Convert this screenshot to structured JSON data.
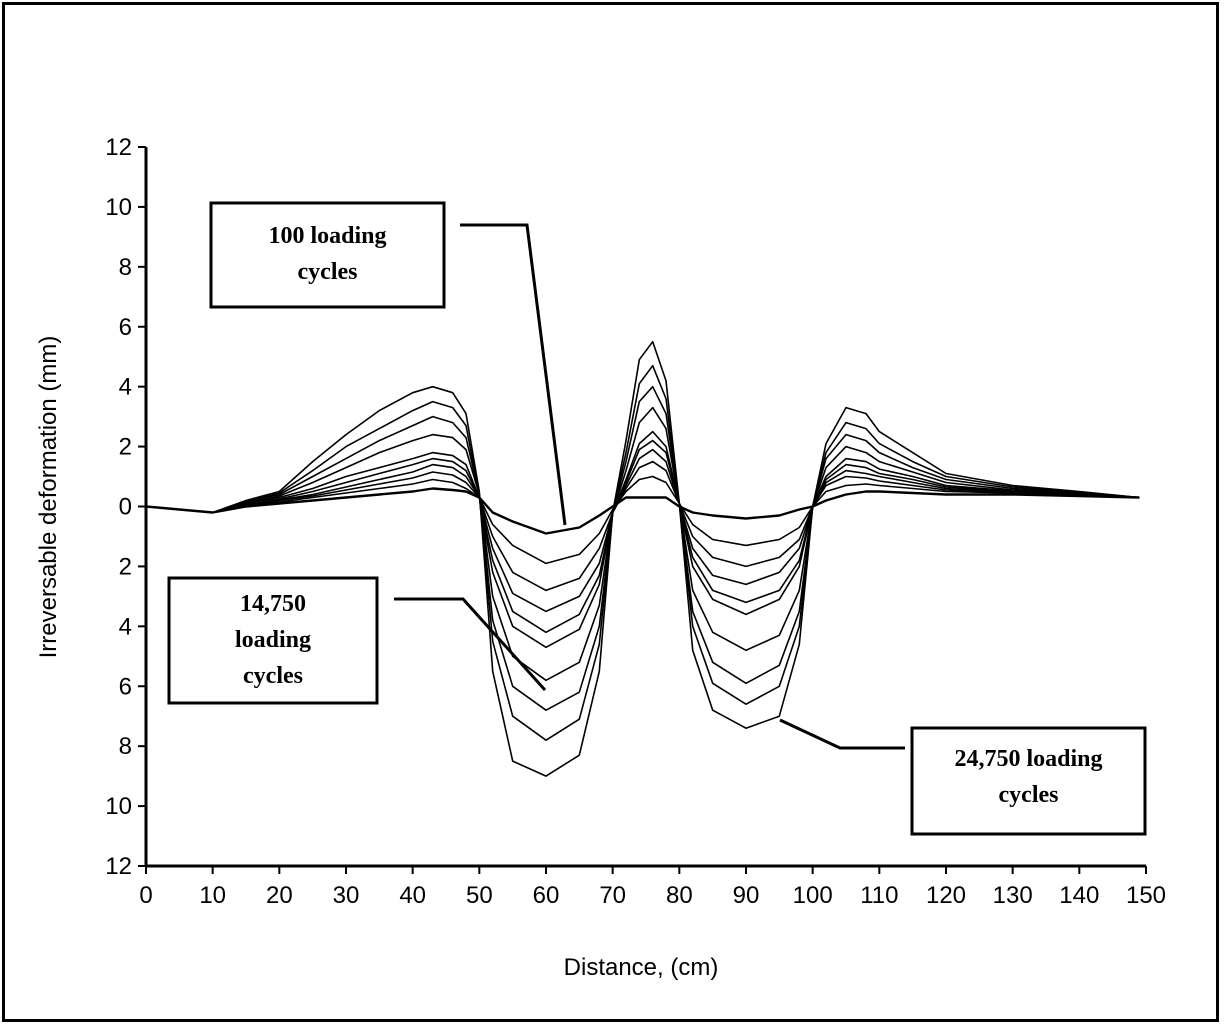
{
  "chart_data": {
    "type": "line",
    "title": "",
    "xlabel": "Distance, (cm)",
    "ylabel": "Irreversable deformation (mm)",
    "xlim": [
      0,
      150
    ],
    "ylim": [
      12,
      -12
    ],
    "x_ticks": [
      0,
      10,
      20,
      30,
      40,
      50,
      60,
      70,
      80,
      90,
      100,
      110,
      120,
      130,
      140,
      150
    ],
    "y_ticks": [
      12,
      10,
      8,
      6,
      4,
      2,
      0,
      -2,
      -4,
      -6,
      -8,
      -10,
      -12
    ],
    "y_tick_labels": [
      "12",
      "10",
      "8",
      "6",
      "4",
      "2",
      "0",
      "2",
      "4",
      "6",
      "8",
      "10",
      "12"
    ],
    "grid": false,
    "legend": "none",
    "line_color": "#000000",
    "x": [
      0,
      5,
      10,
      15,
      20,
      25,
      30,
      35,
      40,
      43,
      46,
      48,
      50,
      52,
      55,
      60,
      65,
      68,
      70,
      72,
      74,
      76,
      78,
      80,
      82,
      85,
      90,
      95,
      98,
      100,
      102,
      105,
      108,
      110,
      115,
      120,
      130,
      140,
      149
    ],
    "series": [
      {
        "label_key": "s100",
        "values": [
          0,
          -0.1,
          -0.2,
          0,
          0.1,
          0.2,
          0.3,
          0.4,
          0.5,
          0.6,
          0.55,
          0.5,
          0.3,
          -0.2,
          -0.5,
          -0.9,
          -0.7,
          -0.3,
          0,
          0.3,
          0.3,
          0.3,
          0.3,
          0,
          -0.2,
          -0.3,
          -0.4,
          -0.3,
          -0.1,
          0,
          0.2,
          0.4,
          0.5,
          0.5,
          0.45,
          0.4,
          0.4,
          0.35,
          0.3
        ]
      },
      {
        "values": [
          0,
          -0.1,
          -0.2,
          0.05,
          0.15,
          0.3,
          0.45,
          0.6,
          0.75,
          0.9,
          0.8,
          0.6,
          0.3,
          -0.6,
          -1.3,
          -1.9,
          -1.6,
          -0.9,
          -0.1,
          0.5,
          0.9,
          1.0,
          0.8,
          0.1,
          -0.6,
          -1.1,
          -1.3,
          -1.1,
          -0.7,
          0,
          0.5,
          0.7,
          0.75,
          0.7,
          0.6,
          0.5,
          0.45,
          0.38,
          0.3
        ]
      },
      {
        "values": [
          0,
          -0.1,
          -0.2,
          0.05,
          0.2,
          0.35,
          0.55,
          0.75,
          0.95,
          1.15,
          1.05,
          0.8,
          0.3,
          -1.0,
          -2.2,
          -2.8,
          -2.4,
          -1.4,
          -0.2,
          0.6,
          1.3,
          1.5,
          1.2,
          0.1,
          -1.0,
          -1.7,
          -2.0,
          -1.7,
          -1.1,
          0,
          0.7,
          1.0,
          0.95,
          0.85,
          0.7,
          0.55,
          0.45,
          0.38,
          0.3
        ]
      },
      {
        "values": [
          0,
          -0.1,
          -0.2,
          0.05,
          0.22,
          0.4,
          0.65,
          0.9,
          1.15,
          1.4,
          1.3,
          1.0,
          0.3,
          -1.4,
          -2.9,
          -3.5,
          -3.0,
          -1.9,
          -0.2,
          0.7,
          1.6,
          1.9,
          1.5,
          0.1,
          -1.4,
          -2.3,
          -2.6,
          -2.2,
          -1.4,
          0,
          0.8,
          1.2,
          1.1,
          1.0,
          0.8,
          0.6,
          0.48,
          0.38,
          0.3
        ]
      },
      {
        "values": [
          0,
          -0.1,
          -0.2,
          0.05,
          0.25,
          0.5,
          0.8,
          1.1,
          1.4,
          1.6,
          1.5,
          1.2,
          0.3,
          -1.8,
          -3.5,
          -4.2,
          -3.6,
          -2.3,
          -0.2,
          0.8,
          1.9,
          2.2,
          1.8,
          0.1,
          -1.7,
          -2.8,
          -3.2,
          -2.8,
          -1.8,
          0,
          0.9,
          1.4,
          1.3,
          1.1,
          0.9,
          0.65,
          0.5,
          0.4,
          0.3
        ]
      },
      {
        "values": [
          0,
          -0.1,
          -0.2,
          0.1,
          0.3,
          0.6,
          1.0,
          1.3,
          1.6,
          1.8,
          1.7,
          1.4,
          0.3,
          -2.2,
          -4.0,
          -4.7,
          -4.1,
          -2.6,
          -0.2,
          0.9,
          2.1,
          2.5,
          2.0,
          0.1,
          -2.0,
          -3.1,
          -3.6,
          -3.1,
          -2.0,
          0,
          1.0,
          1.6,
          1.5,
          1.25,
          1.0,
          0.7,
          0.52,
          0.4,
          0.3
        ]
      },
      {
        "values": [
          0,
          -0.1,
          -0.2,
          0.1,
          0.35,
          0.8,
          1.3,
          1.8,
          2.2,
          2.4,
          2.3,
          1.9,
          0.4,
          -3.0,
          -5.0,
          -5.8,
          -5.2,
          -3.3,
          -0.2,
          1.2,
          2.8,
          3.3,
          2.6,
          0.1,
          -2.8,
          -4.2,
          -4.8,
          -4.3,
          -2.8,
          0,
          1.3,
          2.0,
          1.8,
          1.5,
          1.15,
          0.8,
          0.55,
          0.42,
          0.3
        ]
      },
      {
        "values": [
          0,
          -0.1,
          -0.2,
          0.15,
          0.4,
          1.0,
          1.6,
          2.2,
          2.7,
          3.0,
          2.8,
          2.3,
          0.4,
          -3.8,
          -6.0,
          -6.8,
          -6.2,
          -4.0,
          -0.2,
          1.5,
          3.5,
          4.0,
          3.1,
          0.1,
          -3.5,
          -5.2,
          -5.9,
          -5.3,
          -3.5,
          0,
          1.6,
          2.4,
          2.2,
          1.8,
          1.3,
          0.9,
          0.6,
          0.45,
          0.3
        ]
      },
      {
        "values": [
          0,
          -0.1,
          -0.2,
          0.15,
          0.45,
          1.2,
          2.0,
          2.6,
          3.2,
          3.5,
          3.3,
          2.7,
          0.4,
          -4.5,
          -7.0,
          -7.8,
          -7.1,
          -4.6,
          -0.2,
          1.8,
          4.1,
          4.7,
          3.6,
          0.1,
          -4.0,
          -5.9,
          -6.6,
          -6.0,
          -4.0,
          0,
          1.8,
          2.8,
          2.6,
          2.1,
          1.5,
          1.0,
          0.65,
          0.48,
          0.3
        ]
      },
      {
        "label_key": "s24750",
        "values": [
          0,
          -0.1,
          -0.2,
          0.2,
          0.5,
          1.5,
          2.4,
          3.2,
          3.8,
          4.0,
          3.8,
          3.1,
          0.5,
          -5.5,
          -8.5,
          -9.0,
          -8.3,
          -5.5,
          -0.2,
          2.2,
          4.9,
          5.5,
          4.2,
          0.1,
          -4.8,
          -6.8,
          -7.4,
          -7.0,
          -4.6,
          0,
          2.1,
          3.3,
          3.1,
          2.5,
          1.8,
          1.1,
          0.7,
          0.5,
          0.3
        ]
      }
    ],
    "annotations": [
      {
        "key": "a100",
        "lines": [
          "100 loading",
          "cycles"
        ]
      },
      {
        "key": "a14750",
        "lines": [
          "14,750",
          "loading",
          "cycles"
        ]
      },
      {
        "key": "a24750",
        "lines": [
          "24,750 loading",
          "cycles"
        ]
      }
    ]
  }
}
